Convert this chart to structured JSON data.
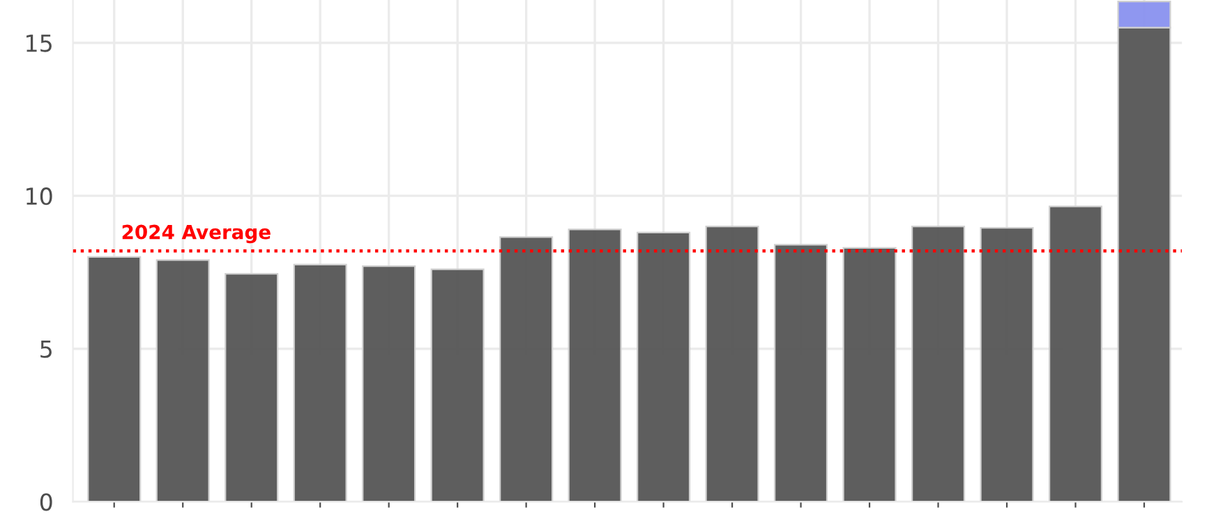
{
  "chart_data": {
    "type": "bar",
    "stacked": true,
    "categories": [
      null,
      null,
      null,
      null,
      null,
      null,
      null,
      null,
      null,
      null,
      null,
      null,
      null,
      null,
      null,
      null
    ],
    "series": [
      {
        "color": "#595959",
        "values": [
          8.0,
          7.9,
          7.45,
          7.75,
          7.7,
          7.6,
          8.65,
          8.9,
          8.8,
          9.0,
          8.4,
          8.3,
          9.0,
          8.95,
          9.65,
          15.5
        ]
      },
      {
        "color": "#8c94f0",
        "values": [
          null,
          null,
          null,
          null,
          null,
          null,
          null,
          null,
          null,
          null,
          null,
          null,
          null,
          null,
          null,
          0.85
        ]
      }
    ],
    "ylim": [
      0,
      16.4
    ],
    "yticks": [
      0,
      5,
      10,
      15
    ],
    "grid": true,
    "ref_lines": [
      {
        "axis": "y",
        "value": 8.2,
        "label": "2024 Average",
        "color": "#ff0000",
        "line_style": "dotted"
      }
    ]
  }
}
